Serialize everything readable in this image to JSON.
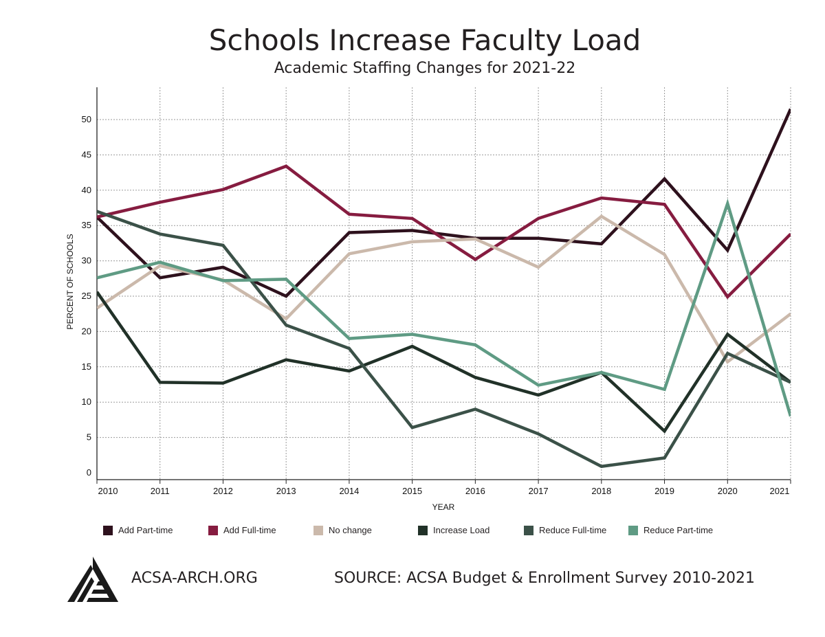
{
  "title": "Schools Increase Faculty Load",
  "subtitle": "Academic Staffing Changes for 2021-22",
  "footer": {
    "org": "ACSA-ARCH.ORG",
    "source": "SOURCE: ACSA Budget & Enrollment Survey 2010-2021",
    "logo_icon": "acsa-logo"
  },
  "chart_data": {
    "type": "line",
    "title": "Schools Increase Faculty Load",
    "subtitle": "Academic Staffing Changes for 2021-22",
    "xlabel": "YEAR",
    "ylabel": "PERCENT OF SCHOOLS",
    "x": [
      2010,
      2011,
      2012,
      2013,
      2014,
      2015,
      2016,
      2017,
      2018,
      2019,
      2020,
      2021
    ],
    "ylim": [
      0,
      54
    ],
    "yticks": [
      0,
      5,
      10,
      15,
      20,
      25,
      30,
      35,
      40,
      45,
      50
    ],
    "grid": true,
    "legend_position": "bottom",
    "series": [
      {
        "name": "Add Part-time",
        "color": "#2e111d",
        "values": [
          36.2,
          27.6,
          29.1,
          25.0,
          34.0,
          34.3,
          33.2,
          33.2,
          32.4,
          41.6,
          31.5,
          51.5
        ]
      },
      {
        "name": "Add Full-time",
        "color": "#861c40",
        "values": [
          36.2,
          38.3,
          40.1,
          43.4,
          36.6,
          36.0,
          30.2,
          36.0,
          38.9,
          38.0,
          24.9,
          33.8
        ]
      },
      {
        "name": "No change",
        "color": "#cbb9ab",
        "values": [
          23.3,
          29.3,
          27.3,
          21.8,
          31.0,
          32.7,
          33.1,
          29.1,
          36.3,
          30.9,
          15.7,
          22.5
        ]
      },
      {
        "name": "Increase Load",
        "color": "#213128",
        "values": [
          25.6,
          12.8,
          12.7,
          16.0,
          14.4,
          17.9,
          13.5,
          11.0,
          14.2,
          5.9,
          19.6,
          12.8
        ]
      },
      {
        "name": "Reduce Full-time",
        "color": "#3b5148",
        "values": [
          37.0,
          33.8,
          32.2,
          20.9,
          17.6,
          6.4,
          9.0,
          5.5,
          0.9,
          2.1,
          16.9,
          12.8
        ]
      },
      {
        "name": "Reduce Part-time",
        "color": "#5f9b84",
        "values": [
          27.6,
          29.8,
          27.2,
          27.4,
          19.0,
          19.6,
          18.1,
          12.4,
          14.2,
          11.8,
          38.1,
          8.0
        ]
      }
    ]
  }
}
